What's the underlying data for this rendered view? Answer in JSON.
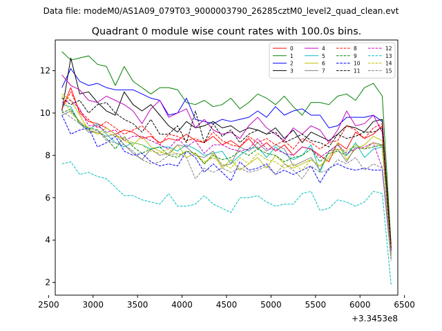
{
  "chart_data": {
    "type": "line",
    "suptitle": "Data file: modeM0/AS1A09_079T03_9000003790_26285cztM0_level2_quad_clean.evt",
    "title": "Quadrant 0 module wise count rates with 100.0s bins.",
    "xlabel": "",
    "ylabel": "",
    "x_offset_label": "+3.3453e8",
    "xlim": [
      2575,
      6425
    ],
    "ylim": [
      1.4,
      13.45
    ],
    "xticks": [
      2500,
      3000,
      3500,
      4000,
      4500,
      5000,
      5500,
      6000,
      6500
    ],
    "yticks": [
      2,
      4,
      6,
      8,
      10,
      12
    ],
    "legend_position": "upper-right",
    "legend_columns": 4,
    "x": [
      2650,
      2750,
      2850,
      2950,
      3050,
      3150,
      3250,
      3350,
      3450,
      3550,
      3650,
      3750,
      3850,
      3950,
      4050,
      4150,
      4250,
      4350,
      4450,
      4550,
      4650,
      4750,
      4850,
      4950,
      5050,
      5150,
      5250,
      5350,
      5450,
      5550,
      5650,
      5750,
      5850,
      5950,
      6050,
      6150,
      6250,
      6350
    ],
    "series": [
      {
        "name": "0",
        "color": "#ff0000",
        "dash": "solid",
        "values": [
          10.2,
          11.2,
          10.0,
          9.6,
          9.5,
          9.3,
          9.0,
          9.2,
          9.1,
          8.8,
          8.9,
          8.6,
          8.8,
          8.7,
          9.0,
          8.7,
          8.6,
          8.9,
          8.5,
          8.7,
          8.4,
          8.8,
          8.3,
          8.6,
          8.2,
          8.5,
          8.0,
          8.4,
          8.3,
          8.0,
          7.7,
          8.6,
          8.3,
          9.1,
          8.8,
          9.0,
          9.4,
          3.5
        ]
      },
      {
        "name": "1",
        "color": "#008000",
        "dash": "solid",
        "values": [
          12.9,
          12.5,
          12.6,
          12.7,
          12.3,
          12.2,
          11.3,
          12.2,
          11.5,
          11.2,
          10.9,
          11.2,
          11.2,
          11.1,
          10.5,
          10.4,
          10.6,
          10.3,
          10.4,
          10.7,
          10.2,
          10.5,
          10.9,
          10.7,
          10.4,
          10.8,
          10.3,
          9.9,
          10.5,
          10.5,
          10.4,
          10.8,
          10.9,
          10.6,
          11.2,
          11.4,
          10.8,
          3.8
        ]
      },
      {
        "name": "2",
        "color": "#0000ff",
        "dash": "solid",
        "values": [
          11.2,
          12.1,
          11.5,
          11.3,
          11.4,
          11.2,
          11.1,
          11.1,
          11.1,
          10.9,
          10.7,
          10.6,
          9.9,
          10.0,
          10.7,
          9.7,
          9.6,
          9.5,
          9.7,
          9.6,
          9.7,
          9.8,
          10.1,
          9.8,
          10.3,
          9.9,
          10.1,
          10.2,
          9.9,
          9.9,
          9.3,
          9.4,
          9.8,
          9.8,
          9.8,
          9.9,
          9.6,
          3.5
        ]
      },
      {
        "name": "3",
        "color": "#000000",
        "dash": "solid",
        "values": [
          10.1,
          12.6,
          10.9,
          11.0,
          10.5,
          10.1,
          9.9,
          11.0,
          10.4,
          10.1,
          10.4,
          9.9,
          9.4,
          9.1,
          9.6,
          9.3,
          9.4,
          9.6,
          9.3,
          9.4,
          9.1,
          9.3,
          9.2,
          9.0,
          9.3,
          8.8,
          9.2,
          8.6,
          9.1,
          8.9,
          8.7,
          9.0,
          9.4,
          9.3,
          9.1,
          9.6,
          9.7,
          3.6
        ]
      },
      {
        "name": "4",
        "color": "#bf00bf",
        "dash": "solid",
        "values": [
          11.8,
          11.3,
          11.1,
          10.6,
          10.5,
          10.8,
          10.6,
          10.4,
          10.1,
          9.5,
          10.2,
          10.6,
          9.8,
          10.0,
          10.2,
          9.3,
          9.7,
          9.2,
          9.0,
          9.1,
          8.8,
          9.4,
          9.8,
          9.3,
          9.0,
          8.7,
          9.3,
          9.0,
          9.4,
          9.2,
          8.6,
          9.2,
          10.1,
          9.4,
          9.5,
          9.9,
          9.1,
          3.5
        ]
      },
      {
        "name": "5",
        "color": "#00bfbf",
        "dash": "solid",
        "values": [
          10.4,
          10.3,
          9.5,
          9.2,
          9.5,
          9.0,
          8.6,
          8.4,
          8.6,
          8.5,
          8.3,
          8.4,
          8.4,
          8.2,
          8.5,
          8.3,
          8.0,
          8.1,
          8.2,
          7.6,
          8.0,
          8.3,
          8.4,
          7.9,
          8.4,
          8.1,
          7.8,
          8.0,
          8.5,
          7.2,
          8.2,
          8.5,
          8.0,
          8.6,
          7.9,
          8.3,
          8.4,
          3.3
        ]
      },
      {
        "name": "6",
        "color": "#bfbf00",
        "dash": "solid",
        "values": [
          10.9,
          10.6,
          9.9,
          9.2,
          9.0,
          9.3,
          9.0,
          8.7,
          8.5,
          8.9,
          8.4,
          8.2,
          8.0,
          8.5,
          7.9,
          8.1,
          7.6,
          8.1,
          7.4,
          7.8,
          7.3,
          7.6,
          7.9,
          7.4,
          8.0,
          7.6,
          7.4,
          7.6,
          7.8,
          7.5,
          7.9,
          8.6,
          7.8,
          8.3,
          8.5,
          8.9,
          8.7,
          3.2
        ]
      },
      {
        "name": "7",
        "color": "#808080",
        "dash": "solid",
        "values": [
          9.9,
          10.1,
          9.6,
          9.1,
          9.1,
          8.9,
          9.0,
          8.5,
          8.1,
          7.8,
          8.3,
          8.0,
          8.1,
          8.5,
          8.4,
          8.0,
          7.9,
          8.2,
          7.5,
          7.6,
          8.4,
          8.2,
          8.6,
          8.2,
          8.5,
          8.3,
          7.5,
          7.7,
          7.9,
          7.3,
          8.2,
          8.3,
          7.7,
          8.4,
          8.3,
          8.6,
          8.5,
          3.4
        ]
      },
      {
        "name": "8",
        "color": "#ff0000",
        "dash": "dashed",
        "values": [
          10.2,
          11.0,
          10.1,
          9.7,
          9.3,
          9.6,
          9.3,
          9.0,
          9.2,
          9.4,
          9.0,
          8.5,
          9.0,
          8.9,
          8.7,
          8.8,
          8.6,
          9.1,
          8.7,
          8.5,
          8.4,
          8.9,
          8.6,
          8.8,
          8.5,
          8.7,
          8.3,
          8.8,
          8.6,
          8.3,
          8.6,
          8.7,
          9.4,
          9.2,
          8.8,
          9.3,
          9.5,
          3.7
        ]
      },
      {
        "name": "9",
        "color": "#008000",
        "dash": "dashed",
        "values": [
          10.0,
          10.2,
          9.5,
          9.3,
          9.2,
          8.8,
          8.3,
          8.9,
          8.4,
          8.1,
          8.3,
          8.4,
          8.0,
          7.9,
          8.2,
          8.1,
          7.6,
          8.0,
          7.8,
          7.9,
          8.2,
          8.0,
          8.3,
          8.1,
          8.0,
          7.7,
          7.9,
          8.0,
          8.3,
          7.7,
          8.1,
          8.2,
          8.0,
          8.5,
          8.3,
          8.4,
          8.5,
          3.3
        ]
      },
      {
        "name": "10",
        "color": "#0000ff",
        "dash": "dashed",
        "values": [
          9.9,
          9.0,
          9.2,
          9.3,
          8.4,
          8.6,
          8.9,
          8.2,
          8.0,
          8.1,
          7.7,
          7.5,
          7.6,
          7.5,
          8.2,
          7.9,
          7.2,
          7.6,
          7.2,
          6.8,
          7.7,
          7.3,
          7.4,
          7.6,
          7.1,
          7.3,
          7.1,
          7.3,
          7.5,
          6.7,
          7.4,
          7.6,
          7.4,
          7.3,
          7.4,
          7.3,
          7.3,
          3.1
        ]
      },
      {
        "name": "11",
        "color": "#000000",
        "dash": "dashed",
        "values": [
          10.7,
          10.4,
          10.6,
          10.0,
          10.4,
          10.5,
          10.0,
          9.7,
          9.5,
          9.1,
          9.7,
          9.0,
          9.0,
          9.4,
          8.6,
          10.1,
          8.6,
          9.5,
          8.9,
          9.2,
          8.6,
          9.0,
          9.2,
          9.0,
          9.1,
          8.6,
          8.8,
          9.0,
          8.7,
          8.6,
          8.4,
          9.0,
          8.8,
          8.9,
          9.1,
          9.1,
          9.3,
          3.6
        ]
      },
      {
        "name": "12",
        "color": "#bf00bf",
        "dash": "dashed",
        "values": [
          10.5,
          10.6,
          10.2,
          9.4,
          9.4,
          9.1,
          9.2,
          8.7,
          8.9,
          8.9,
          8.7,
          8.5,
          8.3,
          8.8,
          8.4,
          8.7,
          8.1,
          8.5,
          8.5,
          8.3,
          8.2,
          8.3,
          8.8,
          8.3,
          8.3,
          8.1,
          8.0,
          8.4,
          8.3,
          7.9,
          8.2,
          8.5,
          8.1,
          8.3,
          8.4,
          8.6,
          7.4,
          3.4
        ]
      },
      {
        "name": "13",
        "color": "#00bfbf",
        "dash": "dashed",
        "values": [
          7.6,
          7.7,
          7.1,
          7.2,
          7.0,
          6.9,
          6.5,
          6.1,
          6.1,
          5.9,
          5.8,
          5.7,
          6.2,
          5.6,
          5.6,
          5.7,
          6.1,
          5.7,
          5.5,
          5.3,
          6.0,
          6.0,
          6.1,
          5.8,
          5.6,
          5.7,
          5.7,
          6.2,
          6.3,
          5.4,
          5.5,
          5.9,
          5.8,
          5.6,
          5.8,
          6.3,
          6.2,
          1.9
        ]
      },
      {
        "name": "14",
        "color": "#bfbf00",
        "dash": "dashed",
        "values": [
          10.8,
          10.0,
          9.6,
          9.3,
          9.0,
          9.1,
          8.9,
          8.8,
          8.6,
          8.5,
          8.2,
          8.1,
          8.3,
          8.0,
          8.2,
          8.1,
          7.7,
          7.9,
          7.6,
          7.4,
          7.9,
          7.6,
          8.1,
          7.8,
          7.7,
          7.4,
          7.6,
          7.3,
          7.8,
          7.5,
          7.8,
          8.3,
          8.2,
          8.5,
          8.3,
          8.6,
          8.4,
          3.2
        ]
      },
      {
        "name": "15",
        "color": "#808080",
        "dash": "dashed",
        "values": [
          10.1,
          9.8,
          9.5,
          9.1,
          9.2,
          8.7,
          8.6,
          8.5,
          8.2,
          7.8,
          7.6,
          7.7,
          8.0,
          8.1,
          7.9,
          6.9,
          7.4,
          7.2,
          7.4,
          7.2,
          7.4,
          7.2,
          7.3,
          7.5,
          7.1,
          7.6,
          7.3,
          6.9,
          7.5,
          7.2,
          7.3,
          7.8,
          7.6,
          7.9,
          7.3,
          7.6,
          7.4,
          3.0
        ]
      }
    ]
  }
}
